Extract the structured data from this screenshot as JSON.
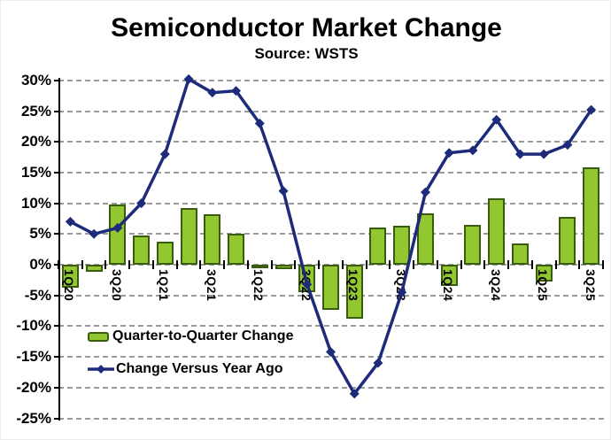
{
  "title": "Semiconductor Market Change",
  "subtitle": "Source: WSTS",
  "legend": {
    "bar_label": "Quarter-to-Quarter Change",
    "line_label": "Change Versus Year Ago"
  },
  "colors": {
    "bar_fill": "#92C732",
    "bar_border": "#3A5C0F",
    "line": "#1E2B7B",
    "grid": "#9a9a9a",
    "axis": "#000000",
    "background": "#ffffff"
  },
  "chart_data": {
    "type": "bar",
    "combo": "bar+line",
    "title": "Semiconductor Market Change",
    "subtitle": "Source: WSTS",
    "categories": [
      "1Q20",
      "2Q20",
      "3Q20",
      "4Q20",
      "1Q21",
      "2Q21",
      "3Q21",
      "4Q21",
      "1Q22",
      "2Q22",
      "3Q22",
      "4Q22",
      "1Q23",
      "2Q23",
      "3Q23",
      "4Q23",
      "1Q24",
      "2Q24",
      "3Q24",
      "4Q24",
      "1Q25",
      "2Q25",
      "3Q25"
    ],
    "x_tick_labels_shown": [
      "1Q20",
      "3Q20",
      "1Q21",
      "3Q21",
      "1Q22",
      "3Q22",
      "1Q23",
      "3Q23",
      "1Q24",
      "3Q24",
      "1Q25",
      "3Q25"
    ],
    "label_every_n": 2,
    "series": [
      {
        "name": "Quarter-to-Quarter Change",
        "type": "bar",
        "color": "#92C732",
        "border_color": "#3A5C0F",
        "values": [
          -3.7,
          -1.2,
          9.8,
          4.8,
          3.7,
          9.2,
          8.2,
          5.0,
          -0.5,
          -0.7,
          -4.5,
          -7.4,
          -8.8,
          6.0,
          6.3,
          8.4,
          -3.5,
          6.5,
          10.8,
          3.5,
          -2.8,
          7.8,
          15.8
        ]
      },
      {
        "name": "Change Versus Year Ago",
        "type": "line",
        "color": "#1E2B7B",
        "marker": "diamond",
        "values": [
          7,
          5,
          6,
          10,
          18,
          30.2,
          28,
          28.3,
          23,
          12,
          -3.2,
          -14.2,
          -21,
          -16,
          -4.5,
          11.8,
          18.2,
          18.6,
          23.6,
          18,
          18,
          19.5,
          25.2
        ]
      }
    ],
    "xlabel": "",
    "ylabel": "",
    "unit": "%",
    "ylim": [
      -25,
      30
    ],
    "ytick_step": 5,
    "y_tick_labels": [
      "30%",
      "25%",
      "20%",
      "15%",
      "10%",
      "5%",
      "0%",
      "-5%",
      "-10%",
      "-15%",
      "-20%",
      "-25%"
    ],
    "grid": "horizontal-dashed",
    "legend_position": "inside-bottom-left"
  }
}
